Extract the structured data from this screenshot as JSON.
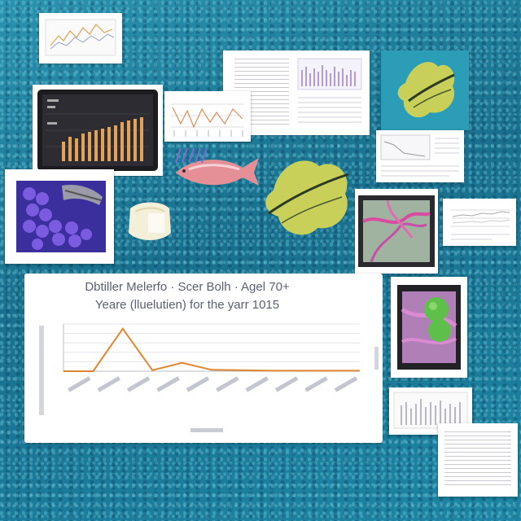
{
  "main_chart": {
    "title_line1": "Dbtiller Melerfo · Scer Bolh · Agel 70+",
    "title_line2": "Yeare (lluelutien) for the yarr 1015",
    "chart_data": {
      "type": "line",
      "x": [
        1,
        2,
        3,
        4,
        5,
        6,
        7,
        8,
        9,
        10,
        11
      ],
      "values": [
        0,
        0,
        9,
        0.2,
        1.8,
        0.3,
        0.2,
        0.1,
        0.1,
        0.1,
        0.1
      ],
      "ylim": [
        0,
        10
      ],
      "grid": true,
      "line_color": "#e0852d"
    }
  },
  "colors": {
    "water": "#1f7f9c",
    "accent_line": "#e0852d",
    "bar": "#e3a257"
  }
}
